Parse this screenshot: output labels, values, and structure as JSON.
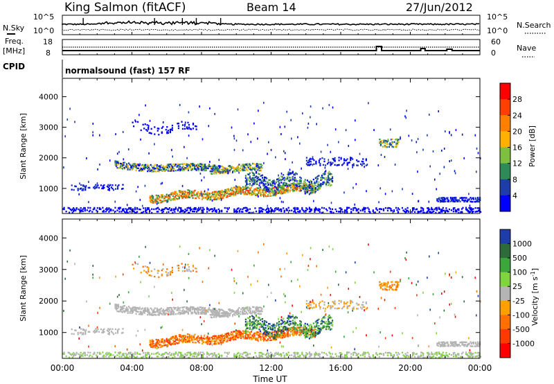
{
  "header": {
    "station": "King Salmon (fitACF)",
    "beam": "Beam 14",
    "date": "27/Jun/2012"
  },
  "noise_panel": {
    "left_label": "N.Sky",
    "right_label": "N.Search",
    "left_ticks": [
      "10^5",
      "10^0"
    ],
    "right_ticks": [
      "10^5",
      "10^0"
    ]
  },
  "freq_panel": {
    "left_label_1": "Freq.",
    "left_label_2": "[MHz]",
    "right_label": "Nave",
    "left_ticks": [
      "18",
      "8"
    ],
    "right_ticks": [
      "60",
      "0"
    ]
  },
  "cpid_panel": {
    "label": "CPID",
    "mode": "normalsound (fast) 157 RF"
  },
  "colors": {
    "power": [
      "#0000ff",
      "#1e3caa",
      "#2e8b57",
      "#7fbf3f",
      "#ffb000",
      "#ff7f00",
      "#ff4000",
      "#ff0000"
    ],
    "velocity": [
      "#1e3caa",
      "#2e6b3a",
      "#3ba63b",
      "#7fd43f",
      "#b4b4b4",
      "#ff9f00",
      "#ff7000",
      "#ff3a00",
      "#ff0000"
    ]
  },
  "chart_data": [
    {
      "type": "heatmap",
      "name": "power",
      "xlabel": "",
      "ylabel": "Slant Range [km]",
      "ylim": [
        180,
        4600
      ],
      "y_ticks": [
        "1000",
        "2000",
        "3000",
        "4000"
      ],
      "x_ticks": [
        "00:00",
        "04:00",
        "08:00",
        "12:00",
        "16:00",
        "20:00",
        "00:00"
      ],
      "colorbar_label": "Power [dB]",
      "colorbar_ticks": [
        "4",
        "8",
        "12",
        "16",
        "20",
        "24",
        "28"
      ]
    },
    {
      "type": "heatmap",
      "name": "velocity",
      "xlabel": "Time UT",
      "ylabel": "Slant Range [km]",
      "ylim": [
        180,
        4600
      ],
      "y_ticks": [
        "1000",
        "2000",
        "3000",
        "4000"
      ],
      "x_ticks": [
        "00:00",
        "04:00",
        "08:00",
        "12:00",
        "16:00",
        "20:00",
        "00:00"
      ],
      "colorbar_label": "Velocity [m s",
      "colorbar_sup": "-1",
      "colorbar_unit_close": "]",
      "colorbar_ticks": [
        "1000",
        "500",
        "100",
        "25",
        "-25",
        "-100",
        "-500",
        "-1000"
      ]
    }
  ]
}
